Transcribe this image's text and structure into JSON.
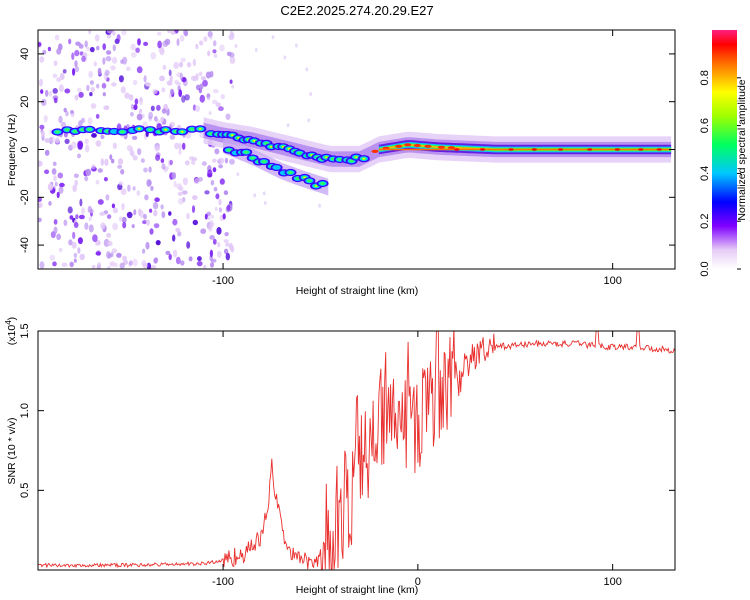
{
  "title": "C2E2.2025.274.20.29.E27",
  "chart_data": [
    {
      "type": "heatmap",
      "name": "spectrogram",
      "xlabel": "Height of straight line (km)",
      "ylabel": "Frequency (Hz)",
      "xlim": [
        -195,
        132
      ],
      "ylim": [
        -50,
        50
      ],
      "xticks": [
        -100,
        100
      ],
      "yticks": [
        -40,
        -20,
        0,
        20,
        40
      ],
      "colorbar": {
        "label": "Normalized spectral amplitude",
        "range": [
          0,
          1
        ],
        "ticks": [
          "0.0",
          "0.2",
          "0.4",
          "0.6",
          "0.8"
        ],
        "tick_values": [
          0,
          0.2,
          0.4,
          0.6,
          0.8
        ]
      },
      "features": [
        {
          "name": "noise-scatter",
          "x_range": [
            -195,
            -100
          ],
          "freq_range": [
            -50,
            50
          ],
          "amplitude": 0.1
        },
        {
          "name": "upper-branch",
          "points": [
            [
              -185,
              8
            ],
            [
              -150,
              8
            ],
            [
              -110,
              8
            ],
            [
              -100,
              6
            ],
            [
              -85,
              4
            ],
            [
              -70,
              1
            ],
            [
              -55,
              -2
            ],
            [
              -45,
              -4
            ],
            [
              -30,
              -4
            ],
            [
              -20,
              0
            ],
            [
              -5,
              2
            ],
            [
              10,
              1
            ],
            [
              40,
              0
            ],
            [
              130,
              0
            ]
          ]
        },
        {
          "name": "lower-branch",
          "points": [
            [
              -100,
              2
            ],
            [
              -85,
              -3
            ],
            [
              -70,
              -9
            ],
            [
              -60,
              -12
            ],
            [
              -45,
              -16
            ]
          ]
        },
        {
          "name": "peak-line",
          "x_range": [
            -20,
            130
          ],
          "freq": 0,
          "amplitude": 1.0
        }
      ]
    },
    {
      "type": "line",
      "name": "snr",
      "xlabel": "Height of straight line (km)",
      "ylabel": "SNR (10 * v/v)",
      "multiplier": "(x10",
      "multiplier_exp": "4",
      "multiplier_close": ")",
      "xlim": [
        -195,
        132
      ],
      "ylim": [
        0,
        1.5
      ],
      "xticks": [
        -100,
        0,
        100
      ],
      "yticks": [
        0.5,
        1.0,
        1.5
      ],
      "ytick_labels": [
        "0.5",
        "1.0",
        "1.5"
      ],
      "color": "#e8302e",
      "x": [
        -195,
        -150,
        -110,
        -100,
        -90,
        -85,
        -80,
        -77,
        -75,
        -73,
        -70,
        -66,
        -63,
        -60,
        -55,
        -50,
        -45,
        -40,
        -35,
        -30,
        -25,
        -20,
        -15,
        -10,
        -5,
        0,
        5,
        10,
        15,
        20,
        25,
        30,
        40,
        50,
        60,
        70,
        80,
        90,
        100,
        110,
        120,
        132
      ],
      "y": [
        0.03,
        0.03,
        0.04,
        0.06,
        0.1,
        0.14,
        0.22,
        0.4,
        0.65,
        0.45,
        0.28,
        0.12,
        0.08,
        0.05,
        0.07,
        0.05,
        0.1,
        0.22,
        0.45,
        0.62,
        0.72,
        0.88,
        0.85,
        0.9,
        0.95,
        0.9,
        1.05,
        1.1,
        1.05,
        1.15,
        1.3,
        1.35,
        1.4,
        1.41,
        1.42,
        1.42,
        1.42,
        1.41,
        1.4,
        1.4,
        1.39,
        1.38
      ],
      "dips": [
        [
          92,
          1.25
        ],
        [
          113,
          1.2
        ]
      ]
    }
  ]
}
